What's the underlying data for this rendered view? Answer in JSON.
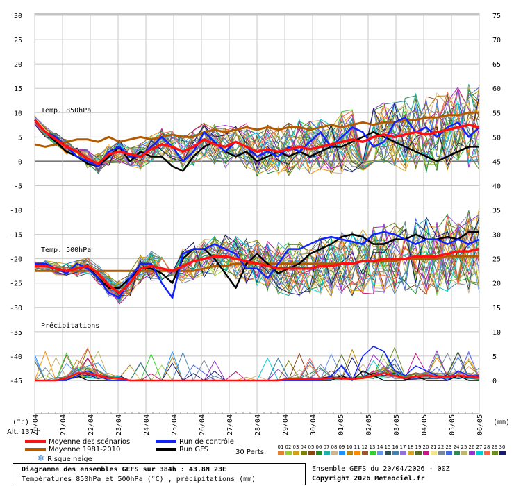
{
  "chart_data": {
    "type": "line",
    "title": "Diagramme des ensembles GEFS sur 384h : 43.8N 23E",
    "subtitle": "Températures 850hPa et 500hPa (°C) , précipitations (mm)",
    "run_info": "Ensemble GEFS du 20/04/2026 - 00Z",
    "copyright": "Copyright 2026 Meteociel.fr",
    "altitude": "Alt. 137m",
    "y_left_unit": "(°c)",
    "y_right_unit": "(mm)",
    "y_left_range": [
      -45,
      30
    ],
    "y_left_ticks": [
      "30",
      "25",
      "20",
      "15",
      "10",
      "5",
      "0",
      "-5",
      "-10",
      "-15",
      "-20",
      "-25",
      "-30",
      "-35",
      "-40",
      "-45"
    ],
    "y_right_ticks": [
      "75",
      "70",
      "65",
      "60",
      "55",
      "50",
      "45",
      "40",
      "35",
      "30",
      "25",
      "20",
      "15",
      "10",
      "5",
      "0"
    ],
    "x_dates": [
      "20/04",
      "21/04",
      "22/04",
      "23/04",
      "24/04",
      "25/04",
      "26/04",
      "27/04",
      "28/04",
      "29/04",
      "30/04",
      "01/05",
      "02/05",
      "03/05",
      "04/05",
      "05/05",
      "06/05"
    ],
    "section_labels": {
      "t850": "Temp. 850hPa",
      "t500": "Temp. 500hPa",
      "precip": "Précipitations"
    },
    "grid": true,
    "legend": {
      "items": [
        {
          "name": "Moyenne des scénarios",
          "color": "#ff1010"
        },
        {
          "name": "Moyenne 1981-2010",
          "color": "#b35a00"
        },
        {
          "name": "Run de contrôle",
          "color": "#1020ff"
        },
        {
          "name": "Run GFS",
          "color": "#000000"
        }
      ],
      "snow_label": "Risque neige",
      "perts_label": "30 Perts."
    },
    "perturbations": {
      "labels": [
        "01",
        "02",
        "03",
        "04",
        "05",
        "06",
        "07",
        "08",
        "09",
        "10",
        "11",
        "12",
        "13",
        "14",
        "15",
        "16",
        "17",
        "18",
        "19",
        "20",
        "21",
        "22",
        "23",
        "24",
        "25",
        "26",
        "27",
        "28",
        "29",
        "30"
      ],
      "colors": [
        "#e08030",
        "#9acd32",
        "#d4a017",
        "#808000",
        "#8b4513",
        "#228b22",
        "#20b2aa",
        "#d2b48c",
        "#1e90ff",
        "#b8860b",
        "#ff8c00",
        "#a0522d",
        "#32cd32",
        "#6495ed",
        "#2f4f4f",
        "#4682b4",
        "#9370db",
        "#daa520",
        "#556b2f",
        "#c71585",
        "#f0e68c",
        "#778899",
        "#4169e1",
        "#2e8b57",
        "#bdb76b",
        "#9932cc",
        "#00ced1",
        "#ff6347",
        "#6b8e23",
        "#191970"
      ]
    },
    "series": [
      {
        "name": "Moyenne des scénarios",
        "t850": [
          8.5,
          6,
          4.5,
          3,
          2,
          0.5,
          -0.5,
          1.5,
          2,
          1.5,
          1,
          2.5,
          3.5,
          3,
          2,
          3,
          4.5,
          3.5,
          3,
          4,
          3,
          2,
          2.5,
          2,
          2.5,
          3,
          2.5,
          3,
          3.5,
          4,
          4.5,
          4,
          5,
          5.5,
          5,
          5.5,
          6,
          5.5,
          6,
          6.5,
          7,
          7.5,
          7
        ],
        "t500": [
          -21.5,
          -21.5,
          -22,
          -22.5,
          -22,
          -21.5,
          -23,
          -25.5,
          -27,
          -25,
          -22,
          -21.5,
          -22,
          -22.5,
          -21.5,
          -20.5,
          -20,
          -19.5,
          -19.5,
          -20,
          -20.5,
          -21,
          -21.5,
          -22,
          -22,
          -22,
          -22,
          -21.5,
          -21.5,
          -21,
          -21,
          -20.5,
          -20.5,
          -20,
          -20,
          -20,
          -19.5,
          -19.5,
          -19.5,
          -19,
          -18.5,
          -18.5,
          -18
        ],
        "precip": [
          0,
          0,
          0,
          0.5,
          1.5,
          1.5,
          1,
          0.5,
          0.5,
          0,
          0,
          0,
          0,
          0,
          0,
          0,
          0,
          0,
          0,
          0,
          0,
          0,
          0,
          0,
          0.3,
          0.3,
          0.3,
          0.3,
          0.5,
          0.5,
          0.3,
          0.5,
          1,
          1.5,
          1,
          0.5,
          0.8,
          1,
          0.8,
          0.8,
          1,
          0.8,
          0.6
        ]
      },
      {
        "name": "Moyenne 1981-2010",
        "t850": [
          3.5,
          3,
          3.5,
          4,
          4.5,
          4.5,
          4,
          5,
          4,
          4.5,
          5,
          4.5,
          5,
          5.5,
          5,
          5,
          6,
          6.5,
          6,
          6.5,
          7,
          6.5,
          7,
          6.5,
          7,
          7,
          6.5,
          7,
          7.5,
          7,
          7.5,
          8,
          7.5,
          8,
          8,
          8.5,
          8.5,
          9,
          9,
          9.5,
          9.5,
          10,
          10
        ],
        "t500": [
          -22.5,
          -22.5,
          -22.5,
          -22.5,
          -22.5,
          -22.5,
          -22.5,
          -22.5,
          -22.5,
          -22.5,
          -22.5,
          -22.5,
          -22.5,
          -22.5,
          -22.5,
          -22.5,
          -22,
          -21.5,
          -21.5,
          -21,
          -21,
          -21,
          -21,
          -21,
          -21,
          -21,
          -21,
          -21,
          -21,
          -21,
          -21,
          -20.5,
          -20.5,
          -20.5,
          -20.5,
          -20,
          -20,
          -20,
          -20,
          -19.5,
          -19.5,
          -19.5,
          -19.5
        ],
        "precip": []
      },
      {
        "name": "Run de contrôle",
        "t850": [
          8.5,
          6,
          5,
          3,
          1,
          0,
          -1,
          2,
          3,
          1,
          1,
          3,
          5,
          3,
          0,
          2,
          6,
          4,
          2,
          4,
          3,
          1,
          2,
          1,
          3,
          2,
          4,
          6,
          3,
          5,
          7,
          6,
          3,
          4,
          8,
          9,
          6,
          7,
          5,
          7,
          8,
          5,
          7
        ],
        "t500": [
          -21,
          -21,
          -22,
          -23,
          -21,
          -22,
          -24,
          -27,
          -28,
          -24,
          -21,
          -21,
          -25,
          -28,
          -19,
          -18,
          -18,
          -17,
          -18,
          -19,
          -22,
          -22,
          -24,
          -21,
          -18,
          -18,
          -17,
          -16,
          -15.5,
          -16,
          -16.5,
          -17,
          -15,
          -14.5,
          -15,
          -16,
          -17,
          -16,
          -16,
          -17,
          -16,
          -17,
          -16
        ],
        "precip": [
          0,
          0,
          0,
          0,
          1,
          2,
          1,
          0,
          0,
          0,
          0,
          0,
          0,
          0,
          0,
          0,
          0,
          0,
          0,
          0,
          0,
          0,
          0,
          0,
          0,
          0,
          0,
          0,
          1,
          3,
          0,
          5,
          7,
          6,
          2,
          1,
          3,
          2,
          1,
          0,
          2,
          1,
          1
        ]
      },
      {
        "name": "Run GFS",
        "t850": [
          8.5,
          6,
          4,
          2,
          1,
          -0.5,
          -1,
          1,
          3,
          0,
          2,
          1,
          1,
          -1,
          -2,
          1,
          3,
          4,
          2,
          1,
          2,
          0,
          1,
          2,
          1,
          2,
          1,
          2,
          3,
          3,
          4,
          5,
          6,
          5,
          4,
          3,
          2,
          1,
          0,
          1,
          2,
          3,
          3
        ],
        "t500": [
          -21,
          -21,
          -22,
          -22.5,
          -22,
          -21.5,
          -24,
          -26,
          -26,
          -24,
          -22,
          -22,
          -23,
          -25,
          -20,
          -18,
          -18,
          -20,
          -23,
          -26,
          -21,
          -19,
          -21,
          -23,
          -22,
          -21,
          -19,
          -18,
          -17,
          -15.5,
          -15,
          -15.5,
          -17,
          -17,
          -16,
          -16,
          -15,
          -16,
          -16,
          -15.5,
          -16,
          -14.5,
          -14.5
        ],
        "precip": [
          0,
          0,
          0,
          0,
          1,
          0,
          0,
          0,
          0,
          0,
          0,
          0,
          0,
          0,
          0,
          0,
          0,
          0,
          0,
          0,
          0,
          0,
          0,
          0,
          0,
          0,
          0,
          0,
          0,
          1,
          0,
          2,
          1,
          0,
          0,
          0,
          1,
          0,
          0,
          0,
          1,
          0,
          0
        ]
      }
    ]
  }
}
